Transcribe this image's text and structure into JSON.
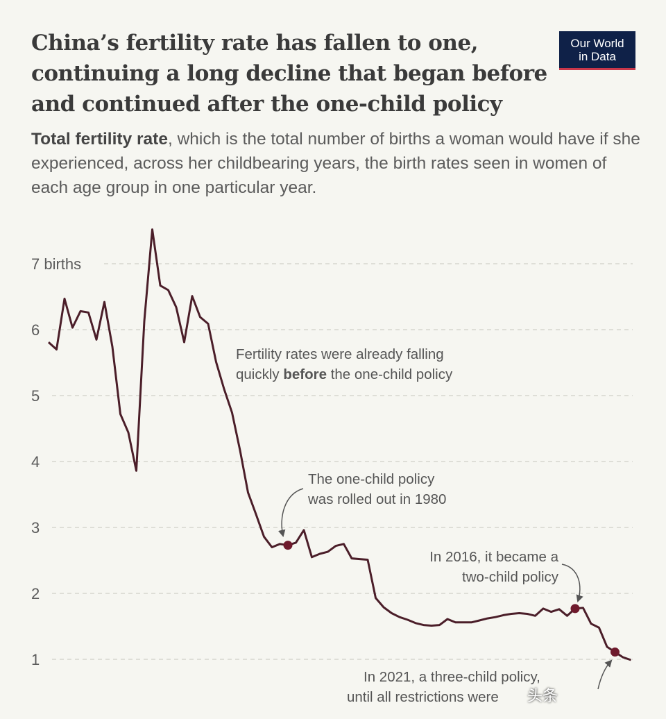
{
  "header": {
    "title_lines": [
      "China’s fertility rate has fallen to one,",
      "continuing a long decline that began before",
      "and continued after the one-child policy"
    ],
    "subtitle_bold": "Total fertility rate",
    "subtitle_rest": ", which is the total number of births a woman would have if she experienced, across her childbearing years, the birth rates seen in women of each age group in one particular year.",
    "logo_lines": [
      "Our World",
      "in Data"
    ]
  },
  "colors": {
    "line": "#4b1e29",
    "marker": "#6e1a2c",
    "grid": "#cfcfc8",
    "logo_bg": "#0f2148",
    "logo_accent": "#c9374a"
  },
  "annotations": {
    "a1": {
      "line1": "Fertility rates were already falling",
      "line2_pre": "quickly ",
      "line2_bold": "before",
      "line2_post": " the one-child policy"
    },
    "a2": {
      "line1": "The one-child policy",
      "line2": "was rolled out in 1980"
    },
    "a3": {
      "line1": "In 2016, it became a",
      "line2": "two-child policy"
    },
    "a4": {
      "line1": "In 2021, a three-child policy,",
      "line2": "until all restrictions were"
    }
  },
  "watermark": "头条",
  "chart_data": {
    "type": "line",
    "title": "China’s fertility rate has fallen to one, continuing a long decline that began before and continued after the one-child policy",
    "ylabel": "",
    "y_ticks": [
      {
        "v": 1,
        "label": "1"
      },
      {
        "v": 2,
        "label": "2"
      },
      {
        "v": 3,
        "label": "3"
      },
      {
        "v": 4,
        "label": "4"
      },
      {
        "v": 5,
        "label": "5"
      },
      {
        "v": 6,
        "label": "6"
      },
      {
        "v": 7,
        "label": "7 births"
      }
    ],
    "ylim": [
      0,
      7.6
    ],
    "xlim": [
      1950,
      2023
    ],
    "grid": true,
    "x": [
      1950,
      1951,
      1952,
      1953,
      1954,
      1955,
      1956,
      1957,
      1958,
      1959,
      1960,
      1961,
      1962,
      1963,
      1964,
      1965,
      1966,
      1967,
      1968,
      1969,
      1970,
      1971,
      1972,
      1973,
      1974,
      1975,
      1976,
      1977,
      1978,
      1979,
      1980,
      1981,
      1982,
      1983,
      1984,
      1985,
      1986,
      1987,
      1988,
      1989,
      1990,
      1991,
      1992,
      1993,
      1994,
      1995,
      1996,
      1997,
      1998,
      1999,
      2000,
      2001,
      2002,
      2003,
      2004,
      2005,
      2006,
      2007,
      2008,
      2009,
      2010,
      2011,
      2012,
      2013,
      2014,
      2015,
      2016,
      2017,
      2018,
      2019,
      2020,
      2021,
      2022,
      2023
    ],
    "y": [
      5.81,
      5.7,
      6.47,
      6.03,
      6.28,
      6.26,
      5.85,
      6.42,
      5.74,
      4.72,
      4.44,
      3.86,
      6.13,
      7.52,
      6.67,
      6.6,
      6.34,
      5.81,
      6.51,
      6.19,
      6.09,
      5.51,
      5.1,
      4.74,
      4.17,
      3.53,
      3.2,
      2.86,
      2.7,
      2.75,
      2.73,
      2.77,
      2.96,
      2.55,
      2.6,
      2.63,
      2.72,
      2.75,
      2.53,
      2.52,
      2.51,
      1.93,
      1.79,
      1.7,
      1.64,
      1.6,
      1.55,
      1.52,
      1.51,
      1.52,
      1.61,
      1.56,
      1.56,
      1.56,
      1.59,
      1.62,
      1.64,
      1.67,
      1.69,
      1.7,
      1.69,
      1.66,
      1.77,
      1.72,
      1.76,
      1.66,
      1.77,
      1.78,
      1.54,
      1.48,
      1.19,
      1.11,
      1.03,
      0.99
    ],
    "highlighted_points": [
      {
        "x": 1980,
        "y": 2.73
      },
      {
        "x": 2016,
        "y": 1.77
      },
      {
        "x": 2021,
        "y": 1.11
      }
    ]
  }
}
